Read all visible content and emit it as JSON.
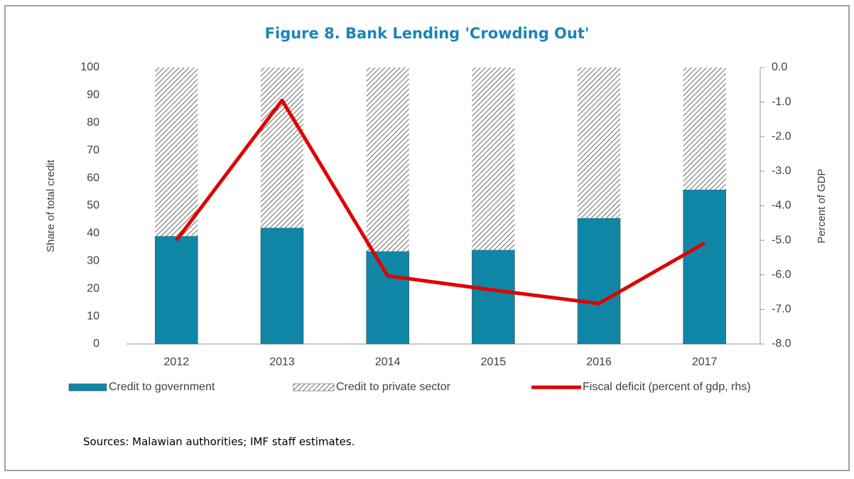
{
  "chart_data": {
    "type": "bar",
    "stacked": true,
    "title": "Figure 8. Bank Lending 'Crowding Out'",
    "ylabel": "Share of total credit",
    "y2label": "Percent of GDP",
    "source": "Sources: Malawian authorities; IMF staff estimates.",
    "categories": [
      "2012",
      "2013",
      "2014",
      "2015",
      "2016",
      "2017"
    ],
    "series": [
      {
        "name": "Credit to government",
        "type": "bar",
        "color": "#0f86a6",
        "values": [
          39,
          42,
          33.5,
          34,
          45.5,
          55.8
        ]
      },
      {
        "name": "Credit to private sector",
        "type": "bar",
        "pattern": "hatch",
        "color": "#444444",
        "values": [
          61,
          58,
          66.5,
          66,
          54.5,
          44.2
        ]
      },
      {
        "name": "Fiscal deficit (percent of gdp, rhs)",
        "type": "line",
        "axis": "y2",
        "color": "#e00000",
        "values": [
          -5.0,
          -0.95,
          -6.03,
          -6.44,
          -6.83,
          -5.08
        ]
      }
    ],
    "ylim": [
      0,
      100
    ],
    "yticks": [
      0,
      10,
      20,
      30,
      40,
      50,
      60,
      70,
      80,
      90,
      100
    ],
    "y2lim": [
      -8,
      0
    ],
    "y2ticks": [
      {
        "value": -8,
        "label": "-8.0"
      },
      {
        "value": -7,
        "label": "-7.0"
      },
      {
        "value": -6,
        "label": "-6.0"
      },
      {
        "value": -5,
        "label": "-5.0"
      },
      {
        "value": -4,
        "label": "-4.0"
      },
      {
        "value": -3,
        "label": "-3.0"
      },
      {
        "value": -2,
        "label": "-2.0"
      },
      {
        "value": -1,
        "label": "-1.0"
      },
      {
        "value": 0,
        "label": "0.0"
      }
    ],
    "grid": false
  }
}
